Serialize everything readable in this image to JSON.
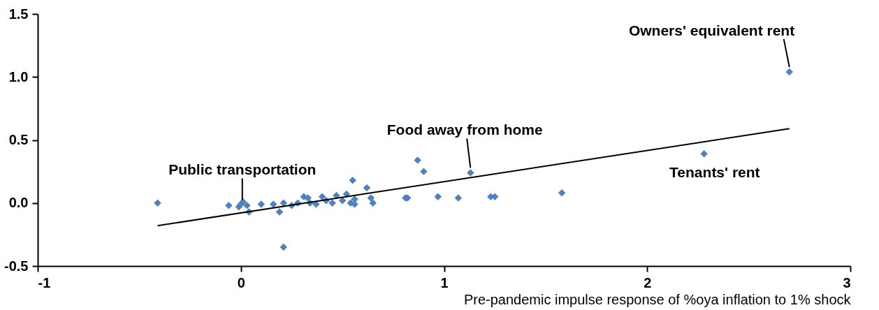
{
  "chart_data": {
    "type": "scatter",
    "xlabel": "Pre-pandemic impulse response of %oya inflation to 1% shock",
    "xlim": [
      -1,
      3
    ],
    "xticks": [
      -1,
      0,
      1,
      2,
      3
    ],
    "ylim": [
      -0.5,
      1.5
    ],
    "yticks": [
      {
        "value": -0.5,
        "label": "-0.5"
      },
      {
        "value": 0,
        "label": "0.0"
      },
      {
        "value": 0.5,
        "label": "0.5"
      },
      {
        "value": 1,
        "label": "1.0"
      },
      {
        "value": 1.5,
        "label": "1.5"
      }
    ],
    "grid": false,
    "legend": false,
    "series": [
      {
        "marker": "diamond",
        "color": "#4f81bd",
        "x": [
          -0.41,
          -0.06,
          -0.01,
          0.0,
          0.01,
          0.03,
          0.04,
          0.1,
          0.16,
          0.19,
          0.21,
          0.21,
          0.25,
          0.28,
          0.31,
          0.33,
          0.34,
          0.37,
          0.4,
          0.42,
          0.45,
          0.47,
          0.5,
          0.52,
          0.54,
          0.55,
          0.56,
          0.56,
          0.62,
          0.64,
          0.65,
          0.81,
          0.82,
          0.87,
          0.9,
          0.97,
          1.07,
          1.13,
          1.23,
          1.25,
          1.58,
          2.28,
          2.7
        ],
        "values": [
          0.0,
          -0.02,
          -0.03,
          -0.01,
          0.01,
          -0.02,
          -0.07,
          -0.01,
          -0.01,
          -0.07,
          0.0,
          -0.35,
          -0.02,
          0.0,
          0.05,
          0.04,
          0.0,
          -0.01,
          0.05,
          0.02,
          0.0,
          0.06,
          0.02,
          0.07,
          0.0,
          0.18,
          0.03,
          -0.01,
          0.12,
          0.04,
          0.0,
          0.04,
          0.04,
          0.34,
          0.25,
          0.05,
          0.04,
          0.24,
          0.05,
          0.05,
          0.08,
          0.39,
          1.04
        ]
      },
      {
        "type": "line",
        "color": "#000000",
        "x": [
          -0.41,
          2.7
        ],
        "values": [
          -0.18,
          0.59
        ]
      }
    ],
    "annotations": [
      {
        "text": "Owners' equivalent rent",
        "x": 2.7,
        "y": 1.04
      },
      {
        "text": "Tenants' rent",
        "x": 2.28,
        "y": 0.39
      },
      {
        "text": "Food away from home",
        "x": 1.13,
        "y": 0.24
      },
      {
        "text": "Public transportation",
        "x": 0.0,
        "y": -0.01
      }
    ]
  }
}
